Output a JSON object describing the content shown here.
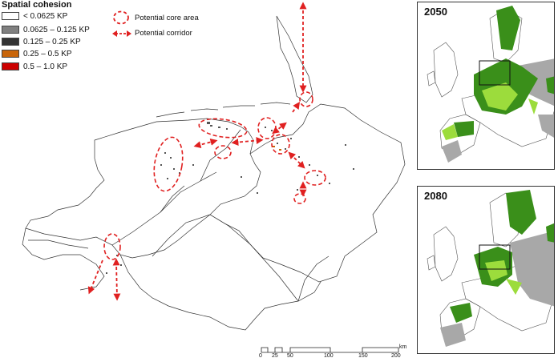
{
  "legend": {
    "title": "Spatial cohesion",
    "classes": [
      {
        "label": "< 0.0625 KP",
        "color": "#ffffff"
      },
      {
        "label": "0.0625 – 0.125 KP",
        "color": "#808080"
      },
      {
        "label": "0.125 – 0.25 KP",
        "color": "#333333"
      },
      {
        "label": "0.25 – 0.5 KP",
        "color": "#c8650a"
      },
      {
        "label": "0.5 – 1.0 KP",
        "color": "#cc0000"
      }
    ],
    "core_area_label": "Potential core area",
    "corridor_label": "Potential corridor"
  },
  "insets": [
    {
      "year": "2050"
    },
    {
      "year": "2080"
    }
  ],
  "scale_bar": {
    "labels": [
      "0",
      "25",
      "50",
      "100",
      "150",
      "200"
    ],
    "unit": "km"
  },
  "colors": {
    "corridor": "#e02020",
    "dark_green": "#3a8f1a",
    "light_green": "#9cdc3c",
    "grey": "#a8a8a8"
  }
}
